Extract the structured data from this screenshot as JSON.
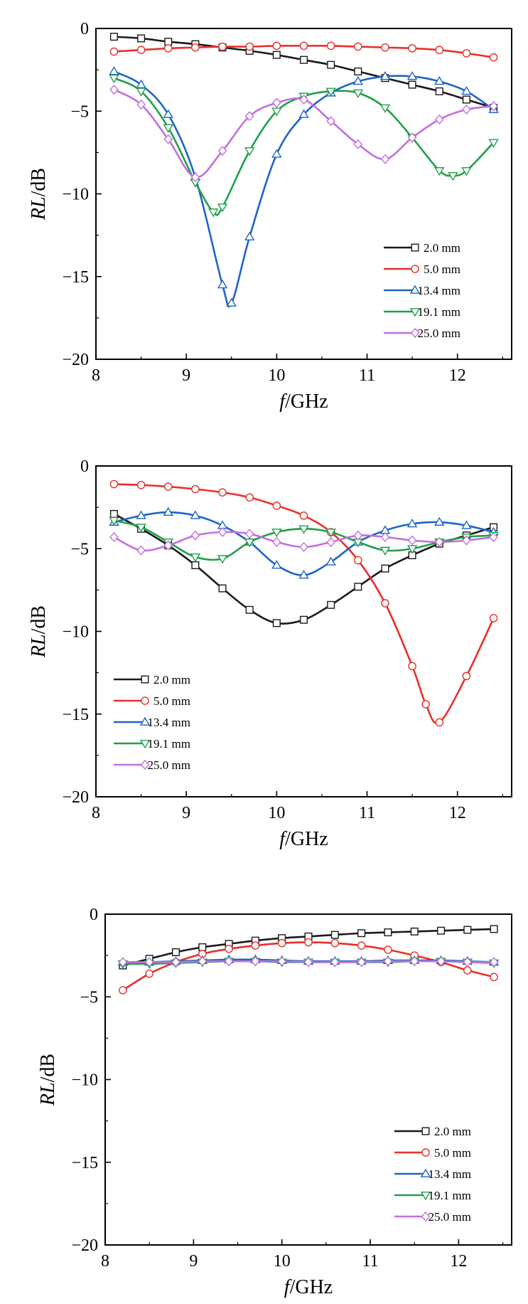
{
  "chart_data": [
    {
      "type": "line",
      "xlabel": "f/GHz",
      "ylabel": "RL/dB",
      "xlim": [
        8,
        12.6
      ],
      "ylim": [
        -20,
        0
      ],
      "xticks": [
        8,
        9,
        10,
        11,
        12
      ],
      "yticks": [
        0,
        -5,
        -10,
        -15,
        -20
      ],
      "grid": false,
      "legend_position": "bottom-right",
      "series": [
        {
          "name": "2.0 mm",
          "color": "#1a1a1a",
          "marker": "square",
          "x": [
            8.2,
            8.5,
            8.8,
            9.1,
            9.4,
            9.7,
            10.0,
            10.3,
            10.6,
            10.9,
            11.2,
            11.5,
            11.8,
            12.1,
            12.4
          ],
          "y": [
            -0.5,
            -0.6,
            -0.8,
            -0.95,
            -1.15,
            -1.35,
            -1.6,
            -1.9,
            -2.2,
            -2.6,
            -3.0,
            -3.4,
            -3.8,
            -4.3,
            -4.8
          ]
        },
        {
          "name": "5.0 mm",
          "color": "#e8302a",
          "marker": "circle",
          "x": [
            8.2,
            8.5,
            8.8,
            9.1,
            9.4,
            9.7,
            10.0,
            10.3,
            10.6,
            10.9,
            11.2,
            11.5,
            11.8,
            12.1,
            12.4
          ],
          "y": [
            -1.4,
            -1.3,
            -1.2,
            -1.15,
            -1.1,
            -1.1,
            -1.05,
            -1.05,
            -1.05,
            -1.1,
            -1.15,
            -1.2,
            -1.3,
            -1.5,
            -1.75
          ]
        },
        {
          "name": "13.4 mm",
          "color": "#1f64c8",
          "marker": "triangle-up",
          "x": [
            8.2,
            8.5,
            8.8,
            9.1,
            9.4,
            9.5,
            9.7,
            10.0,
            10.3,
            10.6,
            10.9,
            11.2,
            11.5,
            11.8,
            12.1,
            12.4
          ],
          "y": [
            -2.6,
            -3.4,
            -5.2,
            -9.0,
            -15.5,
            -16.6,
            -12.6,
            -7.6,
            -5.2,
            -3.9,
            -3.2,
            -2.9,
            -2.9,
            -3.2,
            -3.8,
            -4.9
          ]
        },
        {
          "name": "19.1 mm",
          "color": "#20a04a",
          "marker": "triangle-down",
          "x": [
            8.2,
            8.5,
            8.8,
            9.1,
            9.3,
            9.4,
            9.7,
            10.0,
            10.3,
            10.6,
            10.9,
            11.2,
            11.5,
            11.8,
            11.95,
            12.1,
            12.4
          ],
          "y": [
            -3.0,
            -3.8,
            -6.0,
            -9.3,
            -11.1,
            -10.8,
            -7.4,
            -5.0,
            -4.1,
            -3.8,
            -3.9,
            -4.8,
            -6.6,
            -8.6,
            -8.9,
            -8.6,
            -6.9
          ]
        },
        {
          "name": "25.0 mm",
          "color": "#c36fe0",
          "marker": "diamond",
          "x": [
            8.2,
            8.5,
            8.8,
            9.1,
            9.4,
            9.7,
            10.0,
            10.3,
            10.6,
            10.9,
            11.2,
            11.5,
            11.8,
            12.1,
            12.4
          ],
          "y": [
            -3.7,
            -4.6,
            -6.7,
            -9.0,
            -7.4,
            -5.3,
            -4.5,
            -4.3,
            -5.6,
            -7.0,
            -7.9,
            -6.6,
            -5.5,
            -4.9,
            -4.7
          ]
        }
      ]
    },
    {
      "type": "line",
      "xlabel": "f/GHz",
      "ylabel": "RL/dB",
      "xlim": [
        8,
        12.6
      ],
      "ylim": [
        -20,
        0
      ],
      "xticks": [
        8,
        9,
        10,
        11,
        12
      ],
      "yticks": [
        0,
        -5,
        -10,
        -15,
        -20
      ],
      "grid": false,
      "legend_position": "bottom-left",
      "series": [
        {
          "name": "2.0 mm",
          "color": "#1a1a1a",
          "marker": "square",
          "x": [
            8.2,
            8.5,
            8.8,
            9.1,
            9.4,
            9.7,
            10.0,
            10.3,
            10.6,
            10.9,
            11.2,
            11.5,
            11.8,
            12.1,
            12.4
          ],
          "y": [
            -2.9,
            -3.8,
            -4.8,
            -6.0,
            -7.4,
            -8.7,
            -9.5,
            -9.3,
            -8.4,
            -7.3,
            -6.2,
            -5.4,
            -4.7,
            -4.2,
            -3.7
          ]
        },
        {
          "name": "5.0 mm",
          "color": "#e8302a",
          "marker": "circle",
          "x": [
            8.2,
            8.5,
            8.8,
            9.1,
            9.4,
            9.7,
            10.0,
            10.3,
            10.6,
            10.9,
            11.2,
            11.5,
            11.65,
            11.8,
            12.1,
            12.4
          ],
          "y": [
            -1.1,
            -1.15,
            -1.25,
            -1.4,
            -1.6,
            -1.9,
            -2.4,
            -3.0,
            -4.0,
            -5.7,
            -8.3,
            -12.1,
            -14.4,
            -15.5,
            -12.7,
            -9.2
          ]
        },
        {
          "name": "13.4 mm",
          "color": "#1f64c8",
          "marker": "triangle-up",
          "x": [
            8.2,
            8.5,
            8.8,
            9.1,
            9.4,
            9.7,
            10.0,
            10.3,
            10.6,
            10.9,
            11.2,
            11.5,
            11.8,
            12.1,
            12.4
          ],
          "y": [
            -3.4,
            -3.0,
            -2.8,
            -3.0,
            -3.6,
            -4.6,
            -6.0,
            -6.6,
            -5.8,
            -4.6,
            -3.9,
            -3.5,
            -3.4,
            -3.6,
            -4.0
          ]
        },
        {
          "name": "19.1 mm",
          "color": "#20a04a",
          "marker": "triangle-down",
          "x": [
            8.2,
            8.5,
            8.8,
            9.1,
            9.4,
            9.7,
            10.0,
            10.3,
            10.6,
            10.9,
            11.2,
            11.5,
            11.8,
            12.1,
            12.4
          ],
          "y": [
            -3.3,
            -3.7,
            -4.6,
            -5.5,
            -5.6,
            -4.6,
            -4.0,
            -3.8,
            -4.0,
            -4.6,
            -5.1,
            -5.0,
            -4.6,
            -4.3,
            -4.2
          ]
        },
        {
          "name": "25.0 mm",
          "color": "#c36fe0",
          "marker": "diamond",
          "x": [
            8.2,
            8.5,
            8.8,
            9.1,
            9.4,
            9.7,
            10.0,
            10.3,
            10.6,
            10.9,
            11.2,
            11.5,
            11.8,
            12.1,
            12.4
          ],
          "y": [
            -4.3,
            -5.1,
            -4.8,
            -4.2,
            -4.0,
            -4.1,
            -4.6,
            -4.9,
            -4.6,
            -4.2,
            -4.3,
            -4.5,
            -4.6,
            -4.5,
            -4.3
          ]
        }
      ]
    },
    {
      "type": "line",
      "xlabel": "f/GHz",
      "ylabel": "RL/dB",
      "xlim": [
        8,
        12.6
      ],
      "ylim": [
        -20,
        0
      ],
      "xticks": [
        8,
        9,
        10,
        11,
        12
      ],
      "yticks": [
        0,
        -5,
        -10,
        -15,
        -20
      ],
      "grid": false,
      "legend_position": "bottom-right",
      "series": [
        {
          "name": "2.0 mm",
          "color": "#1a1a1a",
          "marker": "square",
          "x": [
            8.2,
            8.5,
            8.8,
            9.1,
            9.4,
            9.7,
            10.0,
            10.3,
            10.6,
            10.9,
            11.2,
            11.5,
            11.8,
            12.1,
            12.4
          ],
          "y": [
            -3.1,
            -2.7,
            -2.3,
            -2.0,
            -1.8,
            -1.6,
            -1.45,
            -1.35,
            -1.25,
            -1.15,
            -1.1,
            -1.05,
            -1.0,
            -0.95,
            -0.9
          ]
        },
        {
          "name": "5.0 mm",
          "color": "#e8302a",
          "marker": "circle",
          "x": [
            8.2,
            8.5,
            8.8,
            9.1,
            9.4,
            9.7,
            10.0,
            10.3,
            10.6,
            10.9,
            11.2,
            11.5,
            11.8,
            12.1,
            12.4
          ],
          "y": [
            -4.6,
            -3.6,
            -2.9,
            -2.4,
            -2.1,
            -1.9,
            -1.75,
            -1.7,
            -1.75,
            -1.9,
            -2.15,
            -2.5,
            -2.9,
            -3.4,
            -3.8
          ]
        },
        {
          "name": "13.4 mm",
          "color": "#1f64c8",
          "marker": "triangle-up",
          "x": [
            8.2,
            8.5,
            8.8,
            9.1,
            9.4,
            9.7,
            10.0,
            10.3,
            10.6,
            10.9,
            11.2,
            11.5,
            11.8,
            12.1,
            12.4
          ],
          "y": [
            -2.9,
            -2.9,
            -2.85,
            -2.8,
            -2.75,
            -2.75,
            -2.8,
            -2.85,
            -2.85,
            -2.85,
            -2.8,
            -2.8,
            -2.8,
            -2.85,
            -2.9
          ]
        },
        {
          "name": "19.1 mm",
          "color": "#20a04a",
          "marker": "triangle-down",
          "x": [
            8.2,
            8.5,
            8.8,
            9.1,
            9.4,
            9.7,
            10.0,
            10.3,
            10.6,
            10.9,
            11.2,
            11.5,
            11.8,
            12.1,
            12.4
          ],
          "y": [
            -3.0,
            -3.0,
            -2.95,
            -2.9,
            -2.85,
            -2.85,
            -2.9,
            -2.9,
            -2.9,
            -2.9,
            -2.9,
            -2.85,
            -2.85,
            -2.9,
            -2.95
          ]
        },
        {
          "name": "25.0 mm",
          "color": "#c36fe0",
          "marker": "diamond",
          "x": [
            8.2,
            8.5,
            8.8,
            9.1,
            9.4,
            9.7,
            10.0,
            10.3,
            10.6,
            10.9,
            11.2,
            11.5,
            11.8,
            12.1,
            12.4
          ],
          "y": [
            -2.9,
            -2.9,
            -2.9,
            -2.85,
            -2.85,
            -2.85,
            -2.85,
            -2.9,
            -2.9,
            -2.9,
            -2.85,
            -2.85,
            -2.85,
            -2.9,
            -2.9
          ]
        }
      ]
    }
  ]
}
